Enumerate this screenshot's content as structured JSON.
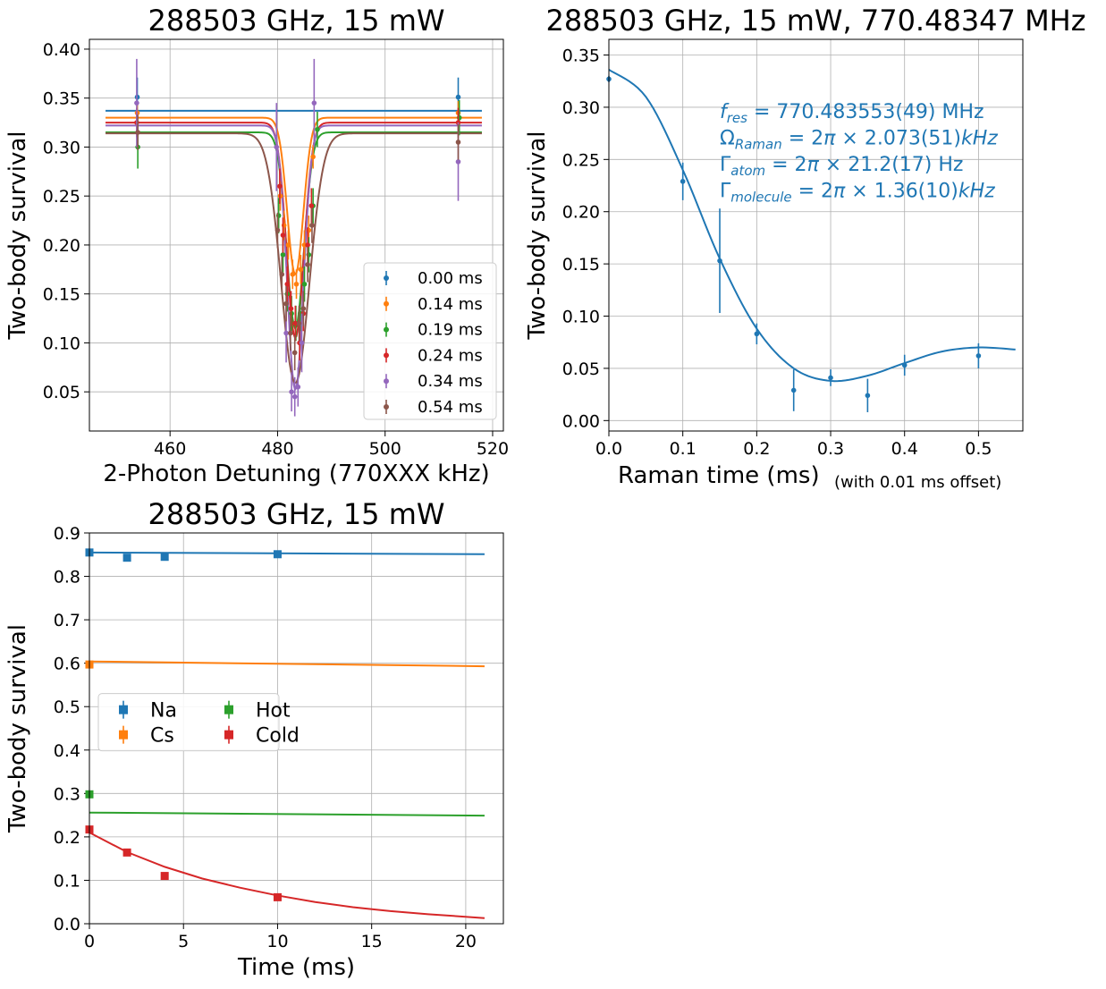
{
  "chart_data": [
    {
      "type": "scatter",
      "title": "288503 GHz, 15 mW",
      "xlabel": "2-Photon Detuning (770XXX kHz)",
      "ylabel": "Two-body survival",
      "xlim": [
        445,
        522
      ],
      "ylim": [
        0.01,
        0.41
      ],
      "xticks": [
        460,
        480,
        500,
        520
      ],
      "yticks": [
        0.05,
        0.1,
        0.15,
        0.2,
        0.25,
        0.3,
        0.35,
        0.4
      ],
      "ytick_labels": [
        "0.05",
        "0.10",
        "0.15",
        "0.20",
        "0.25",
        "0.30",
        "0.35",
        "0.40"
      ],
      "grid": true,
      "legend_position": "lower-right",
      "fit_form": "base - depth * exp(-(x-center)^2 / (2*width^2)), with its own (base, depth, center, width) per series",
      "series": [
        {
          "name": "0.00 ms",
          "color": "#1f77b4",
          "x": [
            453.9,
            513.6
          ],
          "y": [
            0.351,
            0.351
          ],
          "yerr": [
            0.02,
            0.02
          ],
          "fit": {
            "x_range": [
              448,
              518
            ],
            "base": 0.337,
            "depth": 0.0,
            "center": 483.3,
            "width": 1.5
          }
        },
        {
          "name": "0.14 ms",
          "color": "#ff7f0e",
          "x": [
            453.9,
            480.5,
            481.2,
            482.0,
            482.8,
            483.5,
            484.3,
            485.0,
            485.8,
            486.6,
            513.6
          ],
          "y": [
            0.335,
            0.25,
            0.22,
            0.2,
            0.17,
            0.16,
            0.175,
            0.2,
            0.215,
            0.29,
            0.335
          ],
          "yerr": [
            0.012,
            0.015,
            0.015,
            0.015,
            0.015,
            0.015,
            0.015,
            0.015,
            0.015,
            0.012,
            0.012
          ],
          "fit": {
            "x_range": [
              448,
              518
            ],
            "base": 0.33,
            "depth": 0.16,
            "center": 483.3,
            "width": 1.5
          }
        },
        {
          "name": "0.19 ms",
          "color": "#2ca02c",
          "x": [
            454.0,
            480.2,
            481.0,
            481.8,
            482.6,
            483.4,
            484.2,
            485.0,
            485.8,
            486.6,
            487.4,
            513.8
          ],
          "y": [
            0.3,
            0.23,
            0.19,
            0.15,
            0.13,
            0.12,
            0.13,
            0.16,
            0.19,
            0.24,
            0.318,
            0.33
          ],
          "yerr": [
            0.022,
            0.018,
            0.018,
            0.018,
            0.018,
            0.018,
            0.018,
            0.018,
            0.018,
            0.018,
            0.018,
            0.018
          ],
          "fit": {
            "x_range": [
              448,
              518
            ],
            "base": 0.315,
            "depth": 0.2,
            "center": 483.3,
            "width": 1.6
          }
        },
        {
          "name": "0.24 ms",
          "color": "#d62728",
          "x": [
            453.8,
            480.4,
            481.0,
            481.8,
            482.5,
            483.3,
            484.1,
            484.8,
            485.6,
            486.3,
            513.6
          ],
          "y": [
            0.325,
            0.26,
            0.21,
            0.16,
            0.135,
            0.12,
            0.1,
            0.13,
            0.2,
            0.24,
            0.325
          ],
          "yerr": [
            0.015,
            0.018,
            0.018,
            0.018,
            0.018,
            0.018,
            0.018,
            0.018,
            0.018,
            0.018,
            0.015
          ],
          "fit": {
            "x_range": [
              448,
              518
            ],
            "base": 0.325,
            "depth": 0.22,
            "center": 483.3,
            "width": 1.6
          }
        },
        {
          "name": "0.34 ms",
          "color": "#9467bd",
          "x": [
            453.8,
            479.8,
            481.6,
            482.6,
            483.2,
            483.8,
            484.5,
            486.8,
            513.6
          ],
          "y": [
            0.345,
            0.3,
            0.11,
            0.05,
            0.045,
            0.055,
            0.1,
            0.345,
            0.285
          ],
          "yerr": [
            0.045,
            0.045,
            0.03,
            0.02,
            0.02,
            0.02,
            0.03,
            0.045,
            0.04
          ],
          "fit": {
            "x_range": [
              448,
              518
            ],
            "base": 0.322,
            "depth": 0.27,
            "center": 483.3,
            "width": 1.5
          }
        },
        {
          "name": "0.54 ms",
          "color": "#8c564b",
          "x": [
            454.0,
            480.0,
            480.8,
            481.6,
            482.4,
            483.2,
            484.0,
            484.8,
            485.6,
            486.4,
            513.6
          ],
          "y": [
            0.315,
            0.215,
            0.17,
            0.14,
            0.11,
            0.09,
            0.12,
            0.135,
            0.18,
            0.22,
            0.305
          ],
          "yerr": [
            0.018,
            0.018,
            0.018,
            0.018,
            0.018,
            0.018,
            0.018,
            0.018,
            0.018,
            0.018,
            0.018
          ],
          "fit": {
            "x_range": [
              448,
              518
            ],
            "base": 0.314,
            "depth": 0.255,
            "center": 483.3,
            "width": 2.6
          }
        }
      ]
    },
    {
      "type": "scatter",
      "title": "288503 GHz, 15 mW, 770.48347 MHz",
      "xlabel": "Raman time (ms)",
      "xlabel_note": "(with 0.01 ms offset)",
      "ylabel": "Two-body survival",
      "xlim": [
        0.0,
        0.56
      ],
      "ylim": [
        -0.01,
        0.365
      ],
      "xticks": [
        0.0,
        0.1,
        0.2,
        0.3,
        0.4,
        0.5
      ],
      "yticks": [
        0.0,
        0.05,
        0.1,
        0.15,
        0.2,
        0.25,
        0.3,
        0.35
      ],
      "xtick_labels": [
        "0.0",
        "0.1",
        "0.2",
        "0.3",
        "0.4",
        "0.5"
      ],
      "ytick_labels": [
        "0.00",
        "0.05",
        "0.10",
        "0.15",
        "0.20",
        "0.25",
        "0.30",
        "0.35"
      ],
      "grid": true,
      "series": [
        {
          "color": "#1f77b4",
          "x": [
            0.0,
            0.1,
            0.15,
            0.2,
            0.25,
            0.3,
            0.35,
            0.4,
            0.5
          ],
          "y": [
            0.327,
            0.229,
            0.153,
            0.083,
            0.029,
            0.041,
            0.024,
            0.053,
            0.062
          ],
          "yerr": [
            0.003,
            0.018,
            0.05,
            0.01,
            0.02,
            0.008,
            0.016,
            0.01,
            0.012
          ]
        }
      ],
      "fit": {
        "x": [
          0.0,
          0.05,
          0.1,
          0.15,
          0.2,
          0.25,
          0.3,
          0.35,
          0.4,
          0.45,
          0.5,
          0.55
        ],
        "y": [
          0.336,
          0.31,
          0.24,
          0.155,
          0.088,
          0.05,
          0.038,
          0.043,
          0.055,
          0.066,
          0.07,
          0.068
        ]
      },
      "annotations": [
        {
          "parts": [
            {
              "text": "f",
              "italic": true
            },
            {
              "text": "res",
              "sub": true,
              "italic": true
            },
            {
              "text": " = 770.483553(49) MHz"
            }
          ]
        },
        {
          "parts": [
            {
              "text": "Ω"
            },
            {
              "text": "Raman",
              "sub": true,
              "italic": true
            },
            {
              "text": " = 2"
            },
            {
              "text": "π",
              "italic": true
            },
            {
              "text": " × 2.073(51)"
            },
            {
              "text": "kHz",
              "italic": true
            }
          ]
        },
        {
          "parts": [
            {
              "text": "Γ"
            },
            {
              "text": "atom",
              "sub": true,
              "italic": true
            },
            {
              "text": " = 2"
            },
            {
              "text": "π",
              "italic": true
            },
            {
              "text": " × 21.2(17) Hz"
            }
          ]
        },
        {
          "parts": [
            {
              "text": "Γ"
            },
            {
              "text": "molecule",
              "sub": true,
              "italic": true
            },
            {
              "text": " = 2"
            },
            {
              "text": "π",
              "italic": true
            },
            {
              "text": " × 1.36(10)"
            },
            {
              "text": "kHz",
              "italic": true
            }
          ]
        }
      ],
      "annotation_color": "#1f77b4"
    },
    {
      "type": "scatter",
      "title": "288503 GHz, 15 mW",
      "xlabel": "Time (ms)",
      "ylabel": "Two-body survival",
      "xlim": [
        0,
        22
      ],
      "ylim": [
        0.0,
        0.9
      ],
      "xticks": [
        0,
        5,
        10,
        15,
        20
      ],
      "yticks": [
        0.0,
        0.1,
        0.2,
        0.3,
        0.4,
        0.5,
        0.6,
        0.7,
        0.8,
        0.9
      ],
      "xtick_labels": [
        "0",
        "5",
        "10",
        "15",
        "20"
      ],
      "ytick_labels": [
        "0.0",
        "0.1",
        "0.2",
        "0.3",
        "0.4",
        "0.5",
        "0.6",
        "0.7",
        "0.8",
        "0.9"
      ],
      "grid": true,
      "legend_position": "center-left",
      "series": [
        {
          "name": "Na",
          "color": "#1f77b4",
          "x": [
            0.0,
            2.0,
            4.0,
            10.0
          ],
          "y": [
            0.855,
            0.843,
            0.845,
            0.851
          ],
          "yerr": [
            0.008,
            0.008,
            0.008,
            0.008
          ],
          "fit": {
            "x": [
              0,
              21
            ],
            "y": [
              0.855,
              0.851
            ]
          }
        },
        {
          "name": "Cs",
          "color": "#ff7f0e",
          "x": [
            0.0
          ],
          "y": [
            0.597
          ],
          "yerr": [
            0.008
          ],
          "fit": {
            "x": [
              0,
              21
            ],
            "y": [
              0.604,
              0.593
            ]
          }
        },
        {
          "name": "Hot",
          "color": "#2ca02c",
          "x": [
            0.0
          ],
          "y": [
            0.298
          ],
          "yerr": [
            0.008
          ],
          "fit": {
            "x": [
              0,
              21
            ],
            "y": [
              0.256,
              0.249
            ]
          }
        },
        {
          "name": "Cold",
          "color": "#d62728",
          "x": [
            0.0,
            2.0,
            4.0,
            10.0
          ],
          "y": [
            0.217,
            0.164,
            0.11,
            0.061
          ],
          "yerr": [
            0.008,
            0.008,
            0.008,
            0.008
          ],
          "fit": {
            "x": [
              0,
              2,
              4,
              6,
              8,
              10,
              12,
              14,
              16,
              18,
              21
            ],
            "y": [
              0.21,
              0.165,
              0.131,
              0.104,
              0.083,
              0.065,
              0.05,
              0.038,
              0.029,
              0.022,
              0.013
            ]
          }
        }
      ]
    }
  ]
}
